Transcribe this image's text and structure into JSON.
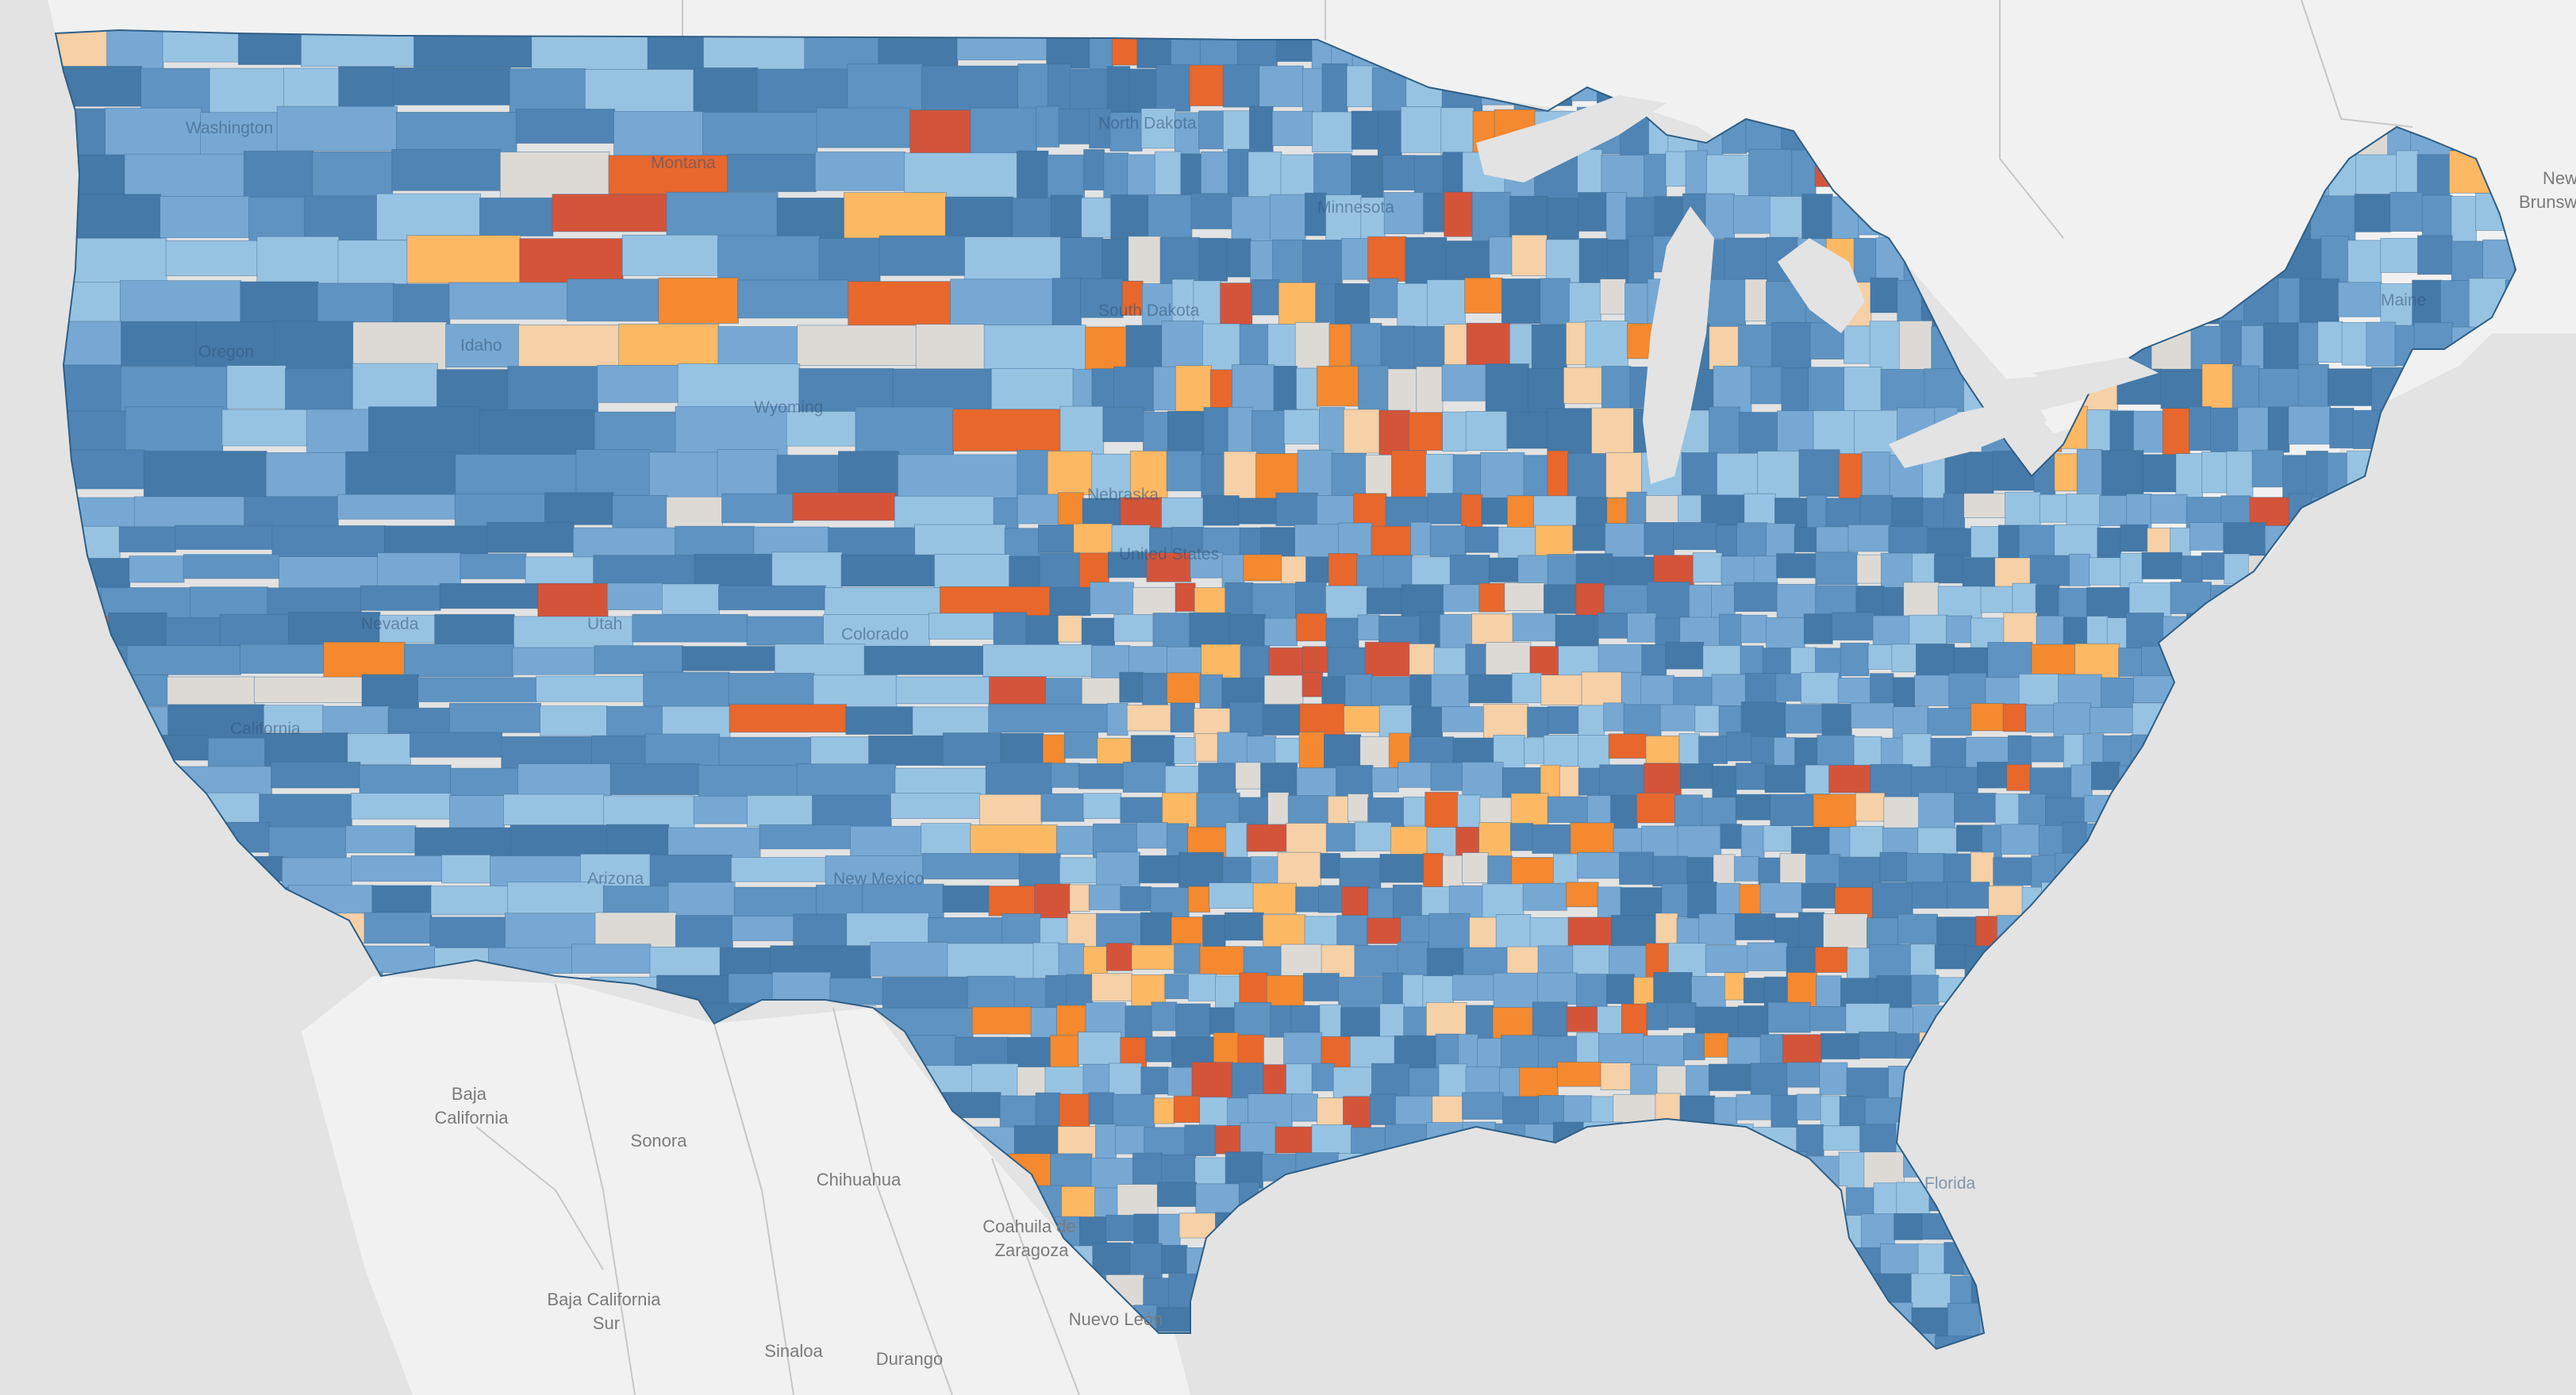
{
  "map": {
    "colors": {
      "ocean": "#e3e3e3",
      "land_foreign": "#f1f1f1",
      "water_lakes": "#e3e3e3",
      "border": "#c8c8c8",
      "county_stroke": "#3d6b91",
      "palette_blue": [
        "#4479a8",
        "#4f84b4",
        "#5e93c2",
        "#76a8d3",
        "#97c3e3"
      ],
      "palette_neutral": "#dddad6",
      "palette_orange": [
        "#f6d0a6",
        "#fdb863",
        "#f4892f",
        "#e8672c",
        "#d4543a"
      ]
    },
    "foreign_labels": [
      {
        "id": "baja-california",
        "lines": [
          "Baja",
          "California"
        ]
      },
      {
        "id": "sonora",
        "lines": [
          "Sonora"
        ]
      },
      {
        "id": "chihuahua",
        "lines": [
          "Chihuahua"
        ]
      },
      {
        "id": "coahuila",
        "lines": [
          "Coahuila de",
          "Zaragoza"
        ]
      },
      {
        "id": "baja-california-sur",
        "lines": [
          "Baja California",
          "Sur"
        ]
      },
      {
        "id": "sinaloa",
        "lines": [
          "Sinaloa"
        ]
      },
      {
        "id": "durango",
        "lines": [
          "Durango"
        ]
      },
      {
        "id": "nuevo-leon",
        "lines": [
          "Nuevo León"
        ]
      },
      {
        "id": "new-brunswick",
        "lines": [
          "New",
          "Brunsw"
        ]
      }
    ],
    "state_labels": [
      {
        "id": "washington",
        "text": "Washington"
      },
      {
        "id": "oregon",
        "text": "Oregon"
      },
      {
        "id": "idaho",
        "text": "Idaho"
      },
      {
        "id": "montana",
        "text": "Montana"
      },
      {
        "id": "wyoming",
        "text": "Wyoming"
      },
      {
        "id": "nevada",
        "text": "Nevada"
      },
      {
        "id": "utah",
        "text": "Utah"
      },
      {
        "id": "colorado",
        "text": "Colorado"
      },
      {
        "id": "california",
        "text": "California"
      },
      {
        "id": "arizona",
        "text": "Arizona"
      },
      {
        "id": "new-mexico",
        "text": "New Mexico"
      },
      {
        "id": "north-dakota",
        "text": "North Dakota"
      },
      {
        "id": "south-dakota",
        "text": "South Dakota"
      },
      {
        "id": "nebraska",
        "text": "Nebraska"
      },
      {
        "id": "minnesota",
        "text": "Minnesota"
      },
      {
        "id": "maine",
        "text": "Maine"
      },
      {
        "id": "florida",
        "text": "Florida"
      },
      {
        "id": "united-states",
        "text": "United States"
      }
    ]
  }
}
